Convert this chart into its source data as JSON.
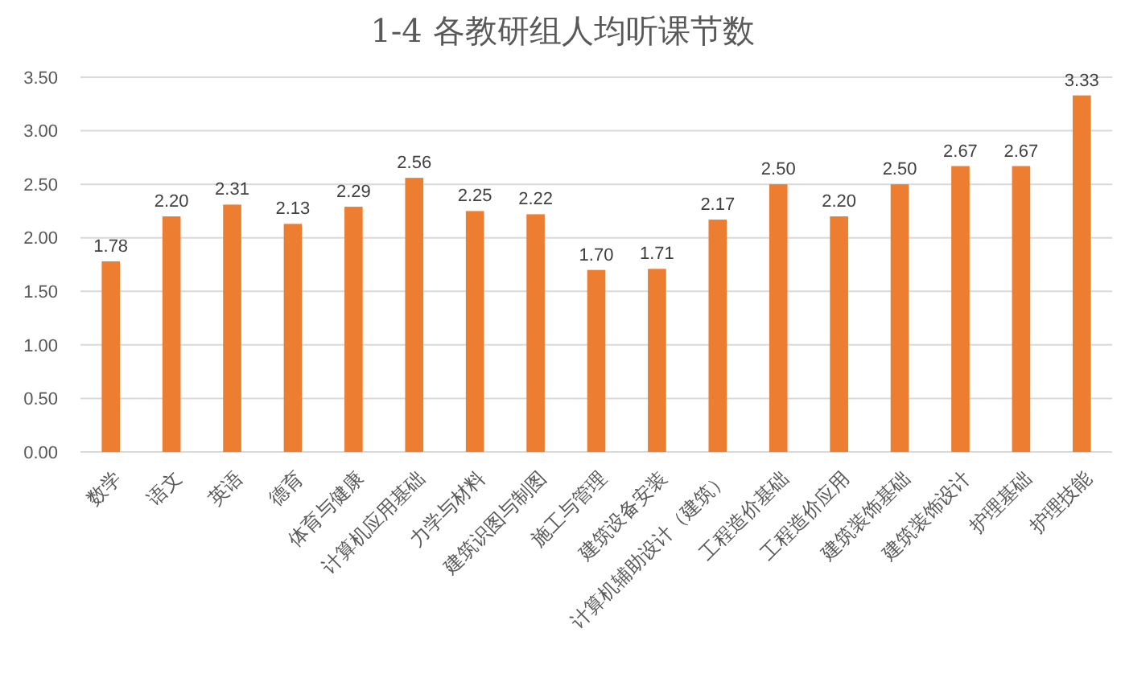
{
  "chart_data": {
    "type": "bar",
    "title": "1-4 各教研组人均听课节数",
    "categories": [
      "数学",
      "语文",
      "英语",
      "德育",
      "体育与健康",
      "计算机应用基础",
      "力学与材料",
      "建筑识图与制图",
      "施工与管理",
      "建筑设备安装",
      "计算机辅助设计（建筑）",
      "工程造价基础",
      "工程造价应用",
      "建筑装饰基础",
      "建筑装饰设计",
      "护理基础",
      "护理技能"
    ],
    "values": [
      1.78,
      2.2,
      2.31,
      2.13,
      2.29,
      2.56,
      2.25,
      2.22,
      1.7,
      1.71,
      2.17,
      2.5,
      2.2,
      2.5,
      2.67,
      2.67,
      3.33
    ],
    "value_labels": [
      "1.78",
      "2.20",
      "2.31",
      "2.13",
      "2.29",
      "2.56",
      "2.25",
      "2.22",
      "1.70",
      "1.71",
      "2.17",
      "2.50",
      "2.20",
      "2.50",
      "2.67",
      "2.67",
      "3.33"
    ],
    "color": "#ed7d31",
    "ylim": [
      0,
      3.5
    ],
    "yticks": [
      {
        "value": 0,
        "label": "0.00"
      },
      {
        "value": 0.5,
        "label": "0.50"
      },
      {
        "value": 1,
        "label": "1.00"
      },
      {
        "value": 1.5,
        "label": "1.50"
      },
      {
        "value": 2,
        "label": "2.00"
      },
      {
        "value": 2.5,
        "label": "2.50"
      },
      {
        "value": 3,
        "label": "3.00"
      },
      {
        "value": 3.5,
        "label": "3.50"
      }
    ],
    "grid": "y"
  }
}
